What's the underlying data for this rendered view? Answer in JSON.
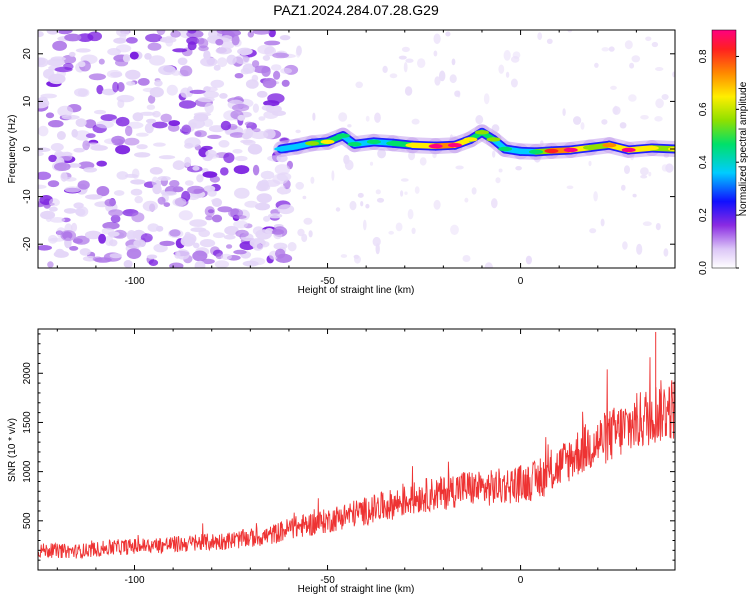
{
  "title": "PAZ1.2024.284.07.28.G29",
  "chart_data": [
    {
      "type": "heatmap",
      "title": "PAZ1.2024.284.07.28.G29",
      "xlabel": "Height of straight line (km)",
      "ylabel": "Frequency (Hz)",
      "xlim": [
        -125,
        40
      ],
      "ylim": [
        -25,
        25
      ],
      "x_ticks": [
        -100,
        -50,
        0
      ],
      "y_ticks": [
        -20,
        -10,
        0,
        10,
        20
      ],
      "colorbar": {
        "label": "Normalized spectral amplitude",
        "range": [
          0.0,
          0.9
        ],
        "ticks": [
          0.0,
          0.2,
          0.4,
          0.6,
          0.8
        ]
      },
      "noise_region_x": [
        -125,
        -62
      ],
      "signal_track": [
        {
          "x": -62,
          "y": 0.0,
          "amp": 0.3
        },
        {
          "x": -58,
          "y": 0.5,
          "amp": 0.35
        },
        {
          "x": -54,
          "y": 1.2,
          "amp": 0.5
        },
        {
          "x": -50,
          "y": 1.5,
          "amp": 0.6
        },
        {
          "x": -46,
          "y": 2.8,
          "amp": 0.4
        },
        {
          "x": -43,
          "y": 1.0,
          "amp": 0.45
        },
        {
          "x": -38,
          "y": 1.5,
          "amp": 0.4
        },
        {
          "x": -33,
          "y": 1.2,
          "amp": 0.45
        },
        {
          "x": -28,
          "y": 0.8,
          "amp": 0.6
        },
        {
          "x": -22,
          "y": 0.6,
          "amp": 0.9
        },
        {
          "x": -17,
          "y": 0.8,
          "amp": 0.85
        },
        {
          "x": -13,
          "y": 2.0,
          "amp": 0.6
        },
        {
          "x": -10,
          "y": 3.5,
          "amp": 0.55
        },
        {
          "x": -7,
          "y": 2.0,
          "amp": 0.5
        },
        {
          "x": -4,
          "y": 0.0,
          "amp": 0.4
        },
        {
          "x": 0,
          "y": -0.5,
          "amp": 0.3
        },
        {
          "x": 4,
          "y": -0.6,
          "amp": 0.4
        },
        {
          "x": 8,
          "y": -0.4,
          "amp": 0.8
        },
        {
          "x": 13,
          "y": -0.2,
          "amp": 0.9
        },
        {
          "x": 18,
          "y": 0.3,
          "amp": 0.5
        },
        {
          "x": 23,
          "y": 0.8,
          "amp": 0.7
        },
        {
          "x": 28,
          "y": -0.2,
          "amp": 0.9
        },
        {
          "x": 34,
          "y": 0.2,
          "amp": 0.6
        },
        {
          "x": 40,
          "y": 0.0,
          "amp": 0.6
        }
      ]
    },
    {
      "type": "line",
      "xlabel": "Height of straight line (km)",
      "ylabel": "SNR (10 * v/v)",
      "xlim": [
        -125,
        40
      ],
      "ylim": [
        0,
        2450
      ],
      "x_ticks": [
        -100,
        -50,
        0
      ],
      "y_ticks": [
        500,
        1000,
        1500,
        2000
      ],
      "color": "#ee3333",
      "series": [
        {
          "x": [
            -125,
            -115,
            -105,
            -95,
            -85,
            -75,
            -65,
            -60,
            -55,
            -50,
            -45,
            -40,
            -35,
            -30,
            -25,
            -20,
            -15,
            -10,
            -5,
            0,
            5,
            10,
            15,
            20,
            25,
            30,
            35,
            40
          ],
          "y": [
            200,
            190,
            230,
            250,
            270,
            300,
            350,
            420,
            460,
            500,
            560,
            600,
            650,
            700,
            760,
            780,
            840,
            820,
            850,
            880,
            920,
            1050,
            1200,
            1300,
            1400,
            1500,
            1600,
            1650
          ]
        }
      ]
    }
  ]
}
